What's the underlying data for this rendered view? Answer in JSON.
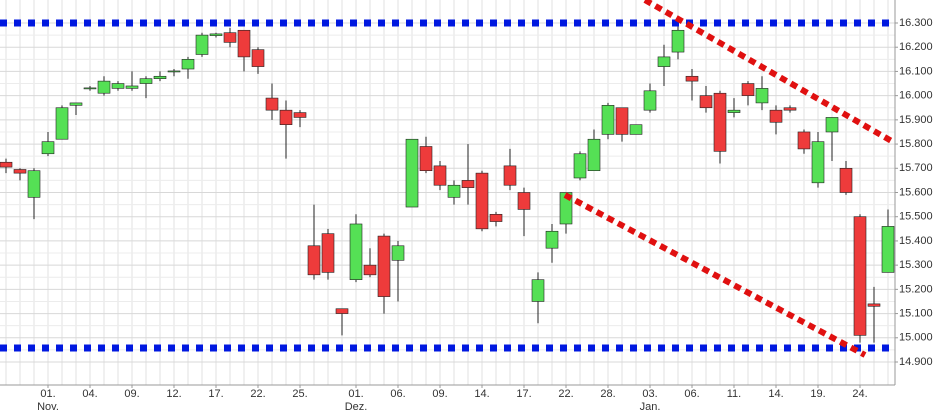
{
  "chart_data": {
    "type": "candlestick",
    "categories": [
      null,
      null,
      null,
      "01.",
      null,
      null,
      "04.",
      null,
      null,
      "09.",
      null,
      null,
      "12.",
      null,
      null,
      "17.",
      null,
      null,
      "22.",
      null,
      null,
      "25.",
      null,
      null,
      null,
      "01.",
      null,
      null,
      "06.",
      null,
      null,
      "09.",
      null,
      null,
      "14.",
      null,
      null,
      "17.",
      null,
      null,
      "22.",
      null,
      null,
      "28.",
      null,
      null,
      "03.",
      null,
      null,
      "06.",
      null,
      null,
      "11.",
      null,
      null,
      "14.",
      null,
      null,
      "19.",
      null,
      null,
      "24.",
      null,
      null
    ],
    "month_labels": [
      {
        "index": 3,
        "label": "Nov."
      },
      {
        "index": 25,
        "label": "Dez."
      },
      {
        "index": 46,
        "label": "Jan."
      }
    ],
    "open": [
      15725,
      15695,
      15580,
      15760,
      15820,
      15960,
      16030,
      16010,
      16030,
      16030,
      16050,
      16070,
      16100,
      16110,
      16170,
      16248,
      16260,
      16270,
      16190,
      15990,
      15940,
      15930,
      15380,
      15430,
      15120,
      15240,
      15300,
      15420,
      15320,
      15540,
      15790,
      15710,
      15580,
      15650,
      15680,
      15510,
      15710,
      15600,
      15150,
      15370,
      15470,
      15660,
      15690,
      15840,
      15950,
      15840,
      15940,
      16120,
      16180,
      16080,
      16000,
      16010,
      15930,
      16050,
      15970,
      15940,
      15950,
      15850,
      15640,
      15850,
      15700,
      15500,
      15140,
      15270
    ],
    "high": [
      15740,
      15700,
      15700,
      15850,
      15960,
      15970,
      16040,
      16080,
      16060,
      16100,
      16080,
      16100,
      16110,
      16160,
      16260,
      16260,
      16280,
      16270,
      16200,
      16050,
      15980,
      15940,
      15550,
      15450,
      15120,
      15510,
      15370,
      15430,
      15400,
      15820,
      15830,
      15730,
      15650,
      15800,
      15690,
      15520,
      15780,
      15620,
      15270,
      15470,
      15600,
      15770,
      15860,
      15970,
      15950,
      15880,
      16050,
      16210,
      16290,
      16110,
      16040,
      16020,
      15990,
      16060,
      16080,
      15960,
      15960,
      15860,
      15850,
      15910,
      15730,
      15510,
      15210,
      15530
    ],
    "low": [
      15680,
      15650,
      15490,
      15750,
      15820,
      15920,
      16020,
      16000,
      16020,
      16020,
      15990,
      16060,
      16080,
      16070,
      16160,
      16240,
      16200,
      16100,
      16090,
      15900,
      15740,
      15870,
      15240,
      15240,
      15010,
      15230,
      15250,
      15100,
      15150,
      15540,
      15680,
      15610,
      15550,
      15550,
      15440,
      15460,
      15610,
      15420,
      15060,
      15310,
      15430,
      15650,
      15690,
      15820,
      15810,
      15840,
      15930,
      16040,
      16150,
      15980,
      15930,
      15720,
      15910,
      15960,
      15940,
      15840,
      15930,
      15760,
      15620,
      15730,
      15590,
      14980,
      14980,
      15270
    ],
    "close": [
      15705,
      15680,
      15690,
      15810,
      15950,
      15970,
      16032,
      16060,
      16050,
      16040,
      16070,
      16080,
      16102,
      16150,
      16250,
      16255,
      16220,
      16160,
      16120,
      15940,
      15880,
      15910,
      15260,
      15270,
      15100,
      15470,
      15260,
      15170,
      15380,
      15820,
      15690,
      15630,
      15630,
      15620,
      15450,
      15480,
      15630,
      15530,
      15240,
      15440,
      15600,
      15760,
      15820,
      15960,
      15840,
      15880,
      16020,
      16160,
      16270,
      16060,
      15950,
      15770,
      15940,
      16000,
      16030,
      15890,
      15940,
      15780,
      15810,
      15910,
      15600,
      15010,
      15130,
      15460
    ],
    "up_color": "#55e055",
    "down_color": "#ee3b3b",
    "edge_color": "#222222",
    "ylim": [
      14805,
      16395
    ],
    "yticks": [
      {
        "value": 14900,
        "label": "14.900"
      },
      {
        "value": 15000,
        "label": "15.000"
      },
      {
        "value": 15100,
        "label": "15.100"
      },
      {
        "value": 15200,
        "label": "15.200"
      },
      {
        "value": 15300,
        "label": "15.300"
      },
      {
        "value": 15400,
        "label": "15.400"
      },
      {
        "value": 15500,
        "label": "15.500"
      },
      {
        "value": 15600,
        "label": "15.600"
      },
      {
        "value": 15700,
        "label": "15.700"
      },
      {
        "value": 15800,
        "label": "15.800"
      },
      {
        "value": 15900,
        "label": "15.900"
      },
      {
        "value": 16000,
        "label": "16.000"
      },
      {
        "value": 16100,
        "label": "16.100"
      },
      {
        "value": 16200,
        "label": "16.200"
      },
      {
        "value": 16300,
        "label": "16.300"
      }
    ],
    "grid": true
  }
}
